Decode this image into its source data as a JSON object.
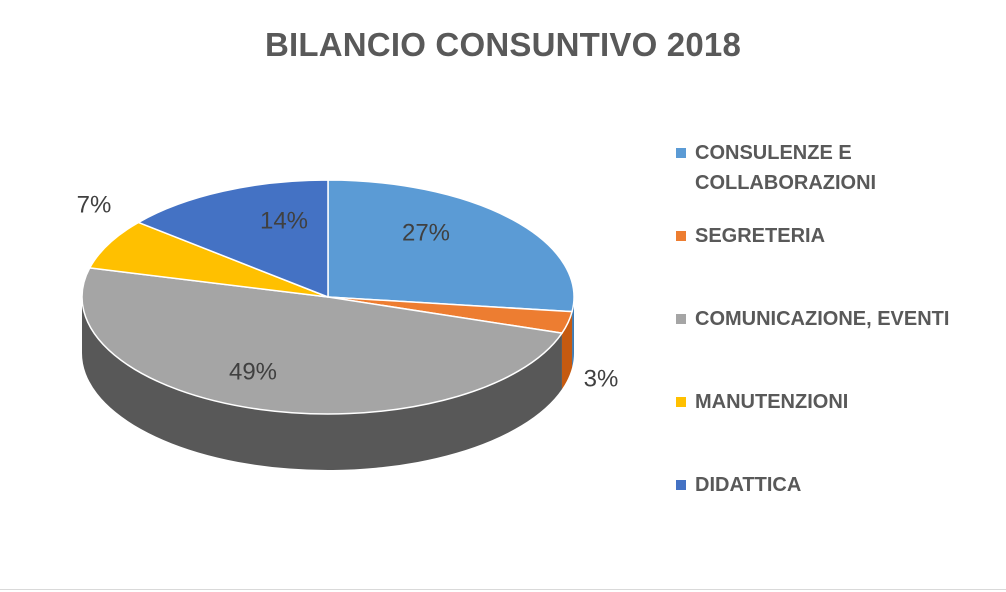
{
  "chart_data": {
    "type": "pie",
    "title": "BILANCIO CONSUNTIVO 2018",
    "categories": [
      "CONSULENZE E COLLABORAZIONI",
      "SEGRETERIA",
      "COMUNICAZIONE, EVENTI",
      "MANUTENZIONI",
      "DIDATTICA"
    ],
    "values": [
      27,
      3,
      49,
      7,
      14
    ],
    "labels": [
      "27%",
      "3%",
      "49%",
      "7%",
      "14%"
    ],
    "colors": [
      "#5b9bd5",
      "#ed7d31",
      "#a5a5a5",
      "#ffc000",
      "#4472c4"
    ],
    "side_colors": [
      "#3d7bb5",
      "#c55a11",
      "#585858",
      "#bf9000",
      "#2f5597"
    ],
    "legend_position": "right",
    "style": "3d"
  },
  "legend": {
    "items": [
      {
        "label": "CONSULENZE E\nCOLLABORAZIONI",
        "color": "#5b9bd5"
      },
      {
        "label": "SEGRETERIA",
        "color": "#ed7d31"
      },
      {
        "label": "COMUNICAZIONE, EVENTI",
        "color": "#a5a5a5"
      },
      {
        "label": "MANUTENZIONI",
        "color": "#ffc000"
      },
      {
        "label": "DIDATTICA",
        "color": "#4472c4"
      }
    ]
  }
}
